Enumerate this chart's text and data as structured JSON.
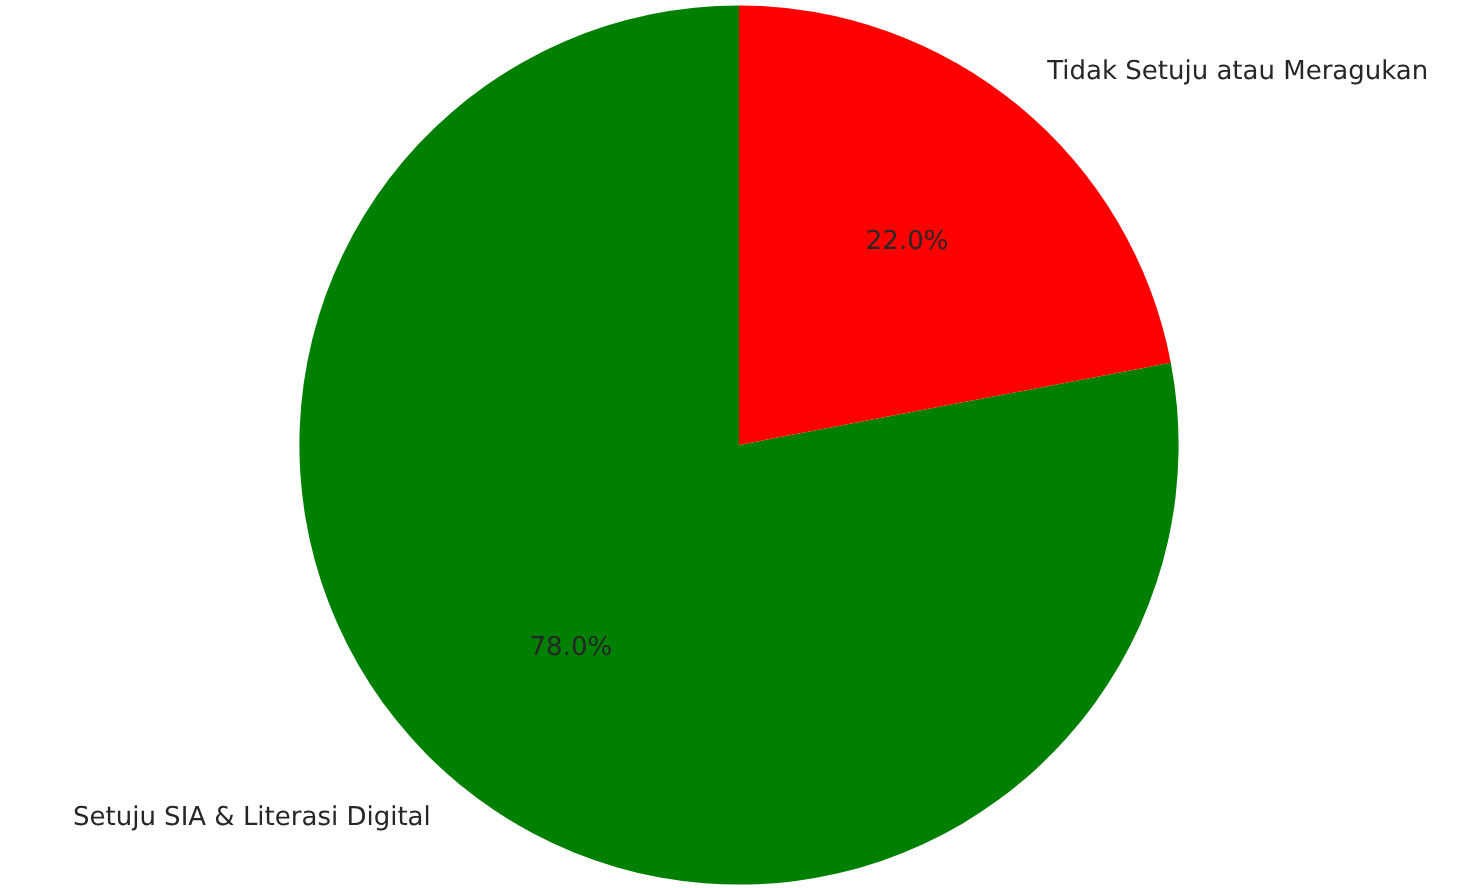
{
  "chart_data": {
    "type": "pie",
    "categories": [
      "Setuju SIA & Literasi Digital",
      "Tidak Setuju atau Meragukan"
    ],
    "values": [
      78,
      22
    ],
    "colors": [
      "#008000",
      "#ff0000"
    ],
    "value_labels": [
      "78.0%",
      "22.0%"
    ]
  }
}
